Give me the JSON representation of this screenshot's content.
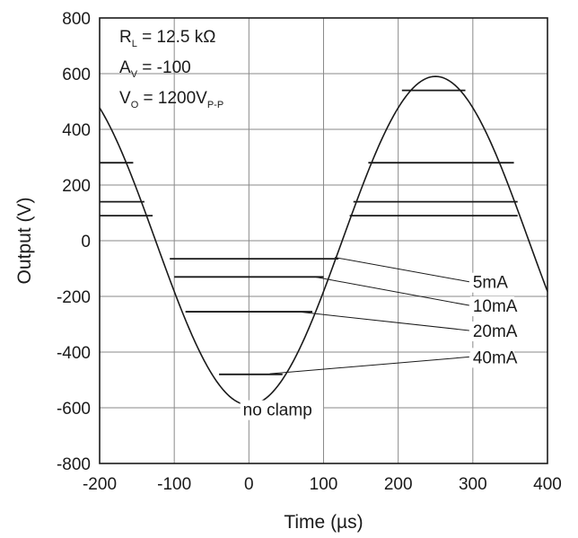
{
  "chart_data": {
    "type": "line",
    "title": "",
    "xlabel": "Time (µs)",
    "ylabel": "Output (V)",
    "xlim": [
      -200,
      400
    ],
    "ylim": [
      -800,
      800
    ],
    "xticks": [
      "-200",
      "-100",
      "0",
      "100",
      "200",
      "300",
      "400"
    ],
    "yticks": [
      "800",
      "600",
      "400",
      "200",
      "0",
      "-200",
      "-400",
      "-600",
      "-800"
    ],
    "grid": true,
    "conditions": [
      {
        "main": "R",
        "sub": "L",
        "rest": " = 12.5 kΩ"
      },
      {
        "main": "A",
        "sub": "V",
        "rest": " = -100"
      },
      {
        "main": "V",
        "sub": "O",
        "rest": " = 1200V",
        "sub2": "P-P"
      }
    ],
    "sine": {
      "amplitude": 590,
      "peak_time": 250,
      "period": 500
    },
    "series": [
      {
        "name": "no clamp",
        "clamp_pos": null,
        "clamp_neg": null,
        "pos_segments": [],
        "neg_segments": []
      },
      {
        "name": "5mA",
        "clamp_pos": 90,
        "clamp_neg": -65,
        "pos_segments": [
          [
            -200,
            -129
          ],
          [
            135,
            360
          ]
        ],
        "neg_segments": [
          [
            -106,
            120
          ]
        ]
      },
      {
        "name": "10mA",
        "clamp_pos": 140,
        "clamp_neg": -130,
        "pos_segments": [
          [
            -200,
            -140
          ],
          [
            140,
            360
          ]
        ],
        "neg_segments": [
          [
            -100,
            100
          ]
        ]
      },
      {
        "name": "20mA",
        "clamp_pos": 280,
        "clamp_neg": -255,
        "pos_segments": [
          [
            -200,
            -155
          ],
          [
            160,
            355
          ]
        ],
        "neg_segments": [
          [
            -85,
            85
          ]
        ]
      },
      {
        "name": "40mA",
        "clamp_pos": 540,
        "clamp_neg": -480,
        "pos_segments": [
          [
            205,
            290
          ]
        ],
        "neg_segments": [
          [
            -40,
            45
          ]
        ]
      }
    ],
    "annotations": [
      {
        "text": "5mA",
        "x": 300,
        "y": -170,
        "target": [
          115,
          -60
        ]
      },
      {
        "text": "10mA",
        "x": 300,
        "y": -255,
        "target": [
          88,
          -130
        ]
      },
      {
        "text": "20mA",
        "x": 300,
        "y": -345,
        "target": [
          65,
          -255
        ]
      },
      {
        "text": "40mA",
        "x": 300,
        "y": -440,
        "target": [
          28,
          -478
        ]
      },
      {
        "text": "no clamp",
        "x": -8,
        "y": -628,
        "target": [
          -5,
          -585
        ]
      }
    ]
  }
}
